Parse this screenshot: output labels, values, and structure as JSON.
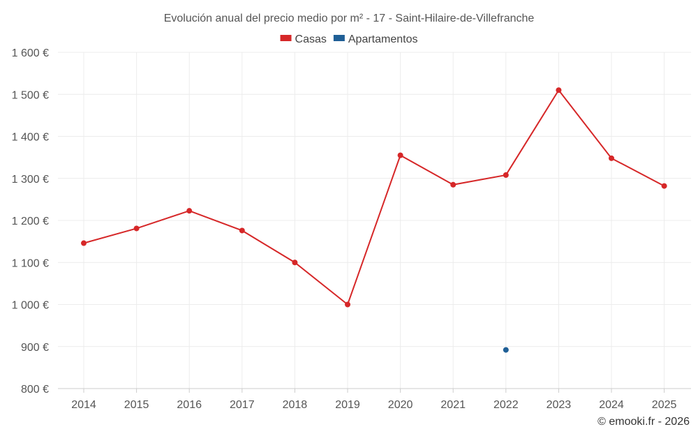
{
  "chart_data": {
    "type": "line",
    "title": "Evolución anual del precio medio por m² - 17 - Saint-Hilaire-de-Villefranche",
    "categories": [
      "2014",
      "2015",
      "2016",
      "2017",
      "2018",
      "2019",
      "2020",
      "2021",
      "2022",
      "2023",
      "2024",
      "2025"
    ],
    "ylim": [
      800,
      1600
    ],
    "y_ticks": [
      {
        "value": 800,
        "label": "800 €"
      },
      {
        "value": 900,
        "label": "900 €"
      },
      {
        "value": 1000,
        "label": "1 000 €"
      },
      {
        "value": 1100,
        "label": "1 100 €"
      },
      {
        "value": 1200,
        "label": "1 200 €"
      },
      {
        "value": 1300,
        "label": "1 300 €"
      },
      {
        "value": 1400,
        "label": "1 400 €"
      },
      {
        "value": 1500,
        "label": "1 500 €"
      },
      {
        "value": 1600,
        "label": "1 600 €"
      }
    ],
    "series": [
      {
        "name": "Casas",
        "color": "#d62728",
        "values": [
          1146,
          1181,
          1223,
          1176,
          1100,
          1000,
          1355,
          1285,
          1308,
          1510,
          1348,
          1282
        ]
      },
      {
        "name": "Apartamentos",
        "color": "#1f5f96",
        "values": [
          null,
          null,
          null,
          null,
          null,
          null,
          null,
          null,
          892,
          null,
          null,
          null
        ]
      }
    ],
    "legend_position": "top-center",
    "grid": true
  },
  "footer": "© emooki.fr - 2026"
}
